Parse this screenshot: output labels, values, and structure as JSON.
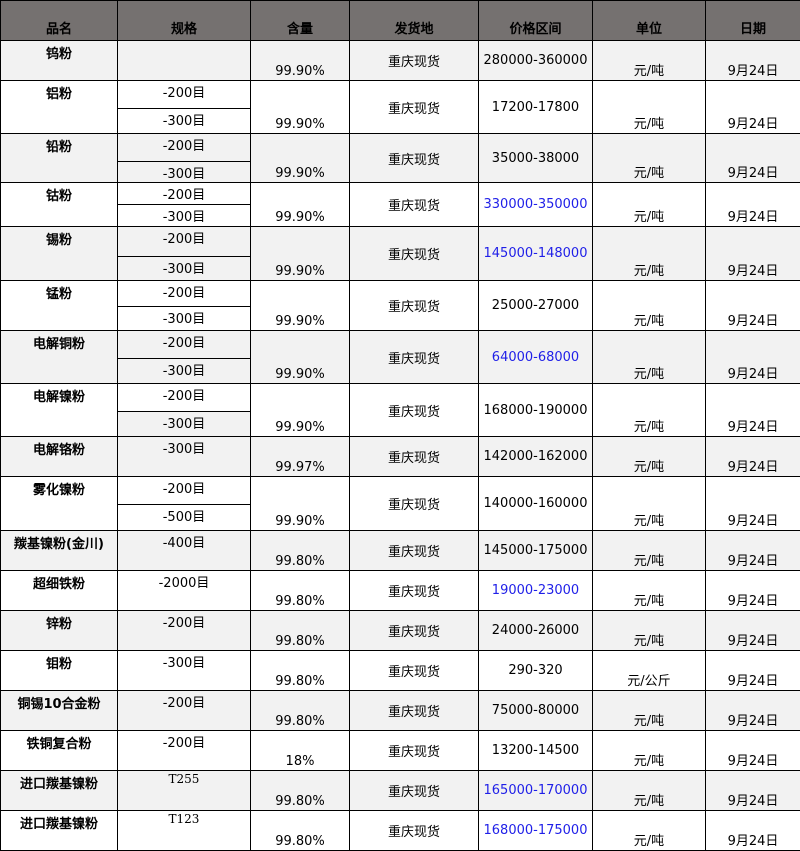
{
  "headers": [
    "品名",
    "规格",
    "含量",
    "发货地",
    "价格区间",
    "单位",
    "日期"
  ],
  "colors": {
    "header_bg": "#757170",
    "stripe_bg": "#f2f2f2",
    "highlight_price": "#1f1fe8"
  },
  "rows": [
    {
      "name": "钨粉",
      "specs": [
        ""
      ],
      "content": "99.90%",
      "origin": "重庆现货",
      "price": "280000-360000",
      "unit": "元/吨",
      "date": "9月24日",
      "highlight": false
    },
    {
      "name": "铝粉",
      "specs": [
        "-200目",
        "-300目"
      ],
      "content": "99.90%",
      "origin": "重庆现货",
      "price": "17200-17800",
      "unit": "元/吨",
      "date": "9月24日",
      "highlight": false
    },
    {
      "name": "铅粉",
      "specs": [
        "-200目",
        "-300目"
      ],
      "content": "99.90%",
      "origin": "重庆现货",
      "price": "35000-38000",
      "unit": "元/吨",
      "date": "9月24日",
      "highlight": false
    },
    {
      "name": "钴粉",
      "specs": [
        "-200目",
        "-300目"
      ],
      "content": "99.90%",
      "origin": "重庆现货",
      "price": "330000-350000",
      "unit": "元/吨",
      "date": "9月24日",
      "highlight": true
    },
    {
      "name": "锡粉",
      "specs": [
        "-200目",
        "-300目"
      ],
      "content": "99.90%",
      "origin": "重庆现货",
      "price": "145000-148000",
      "unit": "元/吨",
      "date": "9月24日",
      "highlight": true
    },
    {
      "name": "锰粉",
      "specs": [
        "-200目",
        "-300目"
      ],
      "content": "99.90%",
      "origin": "重庆现货",
      "price": "25000-27000",
      "unit": "元/吨",
      "date": "9月24日",
      "highlight": false
    },
    {
      "name": "电解铜粉",
      "specs": [
        "-200目",
        "-300目"
      ],
      "content": "99.90%",
      "origin": "重庆现货",
      "price": "64000-68000",
      "unit": "元/吨",
      "date": "9月24日",
      "highlight": true
    },
    {
      "name": "电解镍粉",
      "specs": [
        "-200目",
        "-300目"
      ],
      "content": "99.90%",
      "origin": "重庆现货",
      "price": "168000-190000",
      "unit": "元/吨",
      "date": "9月24日",
      "highlight": false
    },
    {
      "name": "电解铬粉",
      "specs": [
        "-300目"
      ],
      "content": "99.97%",
      "origin": "重庆现货",
      "price": "142000-162000",
      "unit": "元/吨",
      "date": "9月24日",
      "highlight": false
    },
    {
      "name": "雾化镍粉",
      "specs": [
        "-200目",
        "-500目"
      ],
      "content": "99.90%",
      "origin": "重庆现货",
      "price": "140000-160000",
      "unit": "元/吨",
      "date": "9月24日",
      "highlight": false
    },
    {
      "name": "羰基镍粉(金川)",
      "specs": [
        "-400目"
      ],
      "content": "99.80%",
      "origin": "重庆现货",
      "price": "145000-175000",
      "unit": "元/吨",
      "date": "9月24日",
      "highlight": false
    },
    {
      "name": "超细铁粉",
      "specs": [
        "-2000目"
      ],
      "content": "99.80%",
      "origin": "重庆现货",
      "price": "19000-23000",
      "unit": "元/吨",
      "date": "9月24日",
      "highlight": true
    },
    {
      "name": "锌粉",
      "specs": [
        "-200目"
      ],
      "content": "99.80%",
      "origin": "重庆现货",
      "price": "24000-26000",
      "unit": "元/吨",
      "date": "9月24日",
      "highlight": false
    },
    {
      "name": "钼粉",
      "specs": [
        "-300目"
      ],
      "content": "99.80%",
      "origin": "重庆现货",
      "price": "290-320",
      "unit": "元/公斤",
      "date": "9月24日",
      "highlight": false
    },
    {
      "name": "铜锡10合金粉",
      "specs": [
        "-200目"
      ],
      "content": "99.80%",
      "origin": "重庆现货",
      "price": "75000-80000",
      "unit": "元/吨",
      "date": "9月24日",
      "highlight": false
    },
    {
      "name": "铁铜复合粉",
      "specs": [
        "-200目"
      ],
      "content": "18%",
      "origin": "重庆现货",
      "price": "13200-14500",
      "unit": "元/吨",
      "date": "9月24日",
      "highlight": false
    },
    {
      "name": "进口羰基镍粉",
      "specs": [
        "T255"
      ],
      "content": "99.80%",
      "origin": "重庆现货",
      "price": "165000-170000",
      "unit": "元/吨",
      "date": "9月24日",
      "highlight": true
    },
    {
      "name": "进口羰基镍粉",
      "specs": [
        "T123"
      ],
      "content": "99.80%",
      "origin": "重庆现货",
      "price": "168000-175000",
      "unit": "元/吨",
      "date": "9月24日",
      "highlight": true
    }
  ]
}
